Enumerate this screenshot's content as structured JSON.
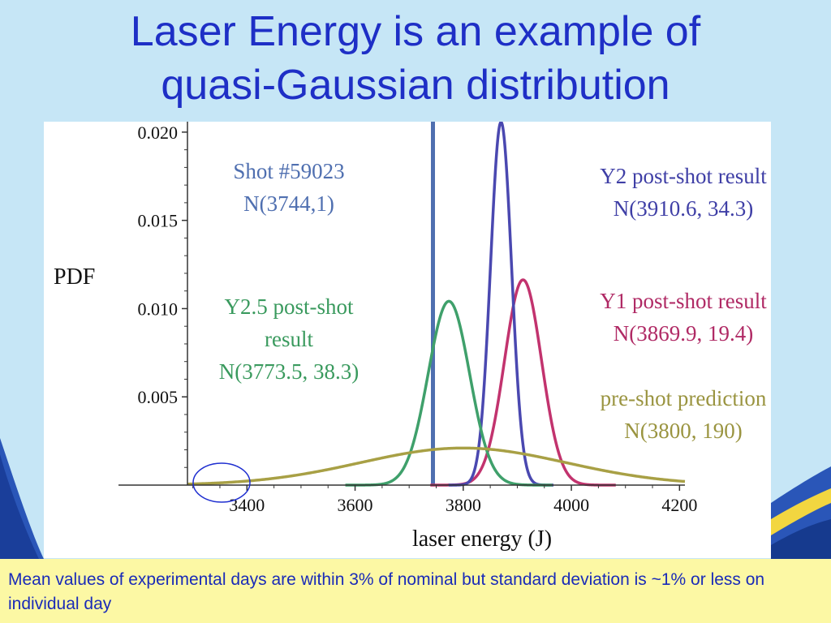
{
  "slide": {
    "title_line1": "Laser Energy is an example of",
    "title_line2": "quasi-Gaussian distribution",
    "caption": "Mean values of experimental days are within 3% of nominal but standard deviation is ~1% or less on individual day",
    "colors": {
      "title": "#1e2fc6",
      "background": "#c6e6f6",
      "caption_bg": "#fcf8a4",
      "caption_text": "#1a2bb8"
    }
  },
  "chart_data": {
    "type": "line",
    "title": "",
    "xlabel": "laser energy (J)",
    "ylabel": "PDF",
    "xlim": [
      3290,
      4210
    ],
    "ylim": [
      0,
      0.0205
    ],
    "x_ticks": [
      3400,
      3600,
      3800,
      4000,
      4200
    ],
    "y_ticks": [
      0.005,
      0.01,
      0.015,
      0.02
    ],
    "x_tick_labels": [
      "3400",
      "3600",
      "3800",
      "4000",
      "4200"
    ],
    "y_tick_labels": [
      "0.005",
      "0.010",
      "0.015",
      "0.020"
    ],
    "series": [
      {
        "mean": 3744,
        "sd": 1,
        "color": "#4f6fb0",
        "display": "vertical-line"
      },
      {
        "mean": 3910.6,
        "sd": 34.3,
        "color": "#c2336e"
      },
      {
        "mean": 3869.9,
        "sd": 19.4,
        "color": "#4a48b0"
      },
      {
        "mean": 3773.5,
        "sd": 38.3,
        "color": "#3fa06b"
      },
      {
        "mean": 3800,
        "sd": 190,
        "color": "#a8a045"
      }
    ],
    "annotations": [
      {
        "lines": [
          "Shot #59023",
          "N(3744,1)"
        ],
        "color": "#4f6fb0"
      },
      {
        "lines": [
          "Y2 post-shot result",
          "N(3910.6, 34.3)"
        ],
        "color": "#3f3fa6"
      },
      {
        "lines": [
          "Y1 post-shot result",
          "N(3869.9, 19.4)"
        ],
        "color": "#b02a65"
      },
      {
        "lines": [
          "Y2.5 post-shot",
          "result",
          "N(3773.5, 38.3)"
        ],
        "color": "#3a9a5e"
      },
      {
        "lines": [
          "pre-shot prediction",
          "N(3800, 190)"
        ],
        "color": "#9a9440"
      }
    ],
    "grid": false
  }
}
